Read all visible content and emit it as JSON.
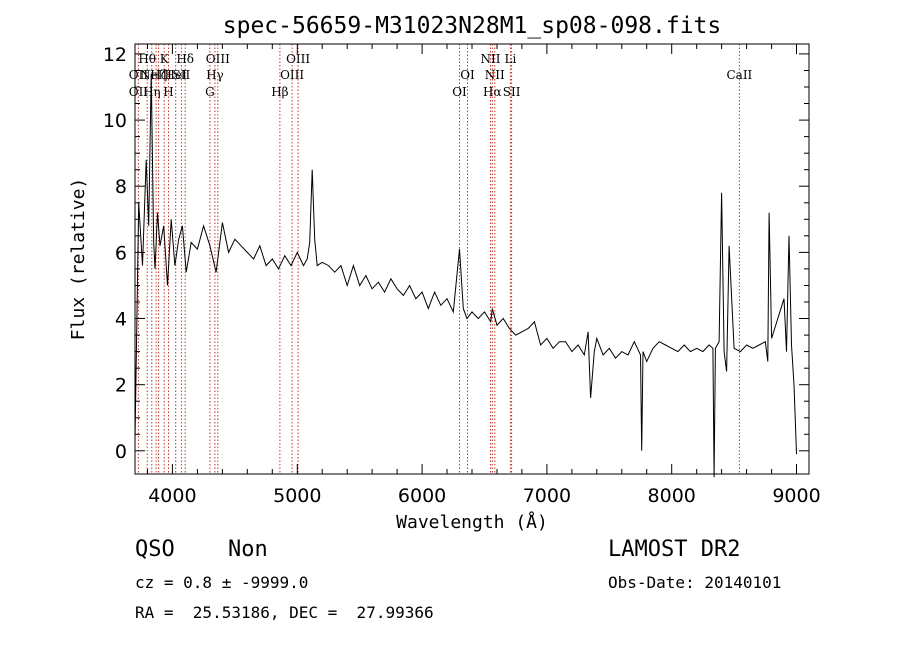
{
  "chart_data": {
    "type": "line",
    "title": "spec-56659-M31023N28M1_sp08-098.fits",
    "xlabel": "Wavelength (Å)",
    "ylabel": "Flux (relative)",
    "xlim": [
      3700,
      9100
    ],
    "ylim": [
      -0.7,
      12.3
    ],
    "x_ticks": [
      4000,
      5000,
      6000,
      7000,
      8000,
      9000
    ],
    "y_ticks": [
      0,
      2,
      4,
      6,
      8,
      10,
      12
    ],
    "grid": false,
    "line_color": "#000000",
    "marker_color": "#c0392b",
    "x": [
      3700,
      3730,
      3760,
      3790,
      3810,
      3830,
      3850,
      3860,
      3880,
      3900,
      3930,
      3960,
      3990,
      4020,
      4050,
      4080,
      4110,
      4150,
      4200,
      4250,
      4300,
      4350,
      4400,
      4450,
      4500,
      4550,
      4600,
      4650,
      4700,
      4750,
      4800,
      4850,
      4900,
      4950,
      5000,
      5050,
      5080,
      5100,
      5120,
      5140,
      5160,
      5200,
      5250,
      5300,
      5350,
      5400,
      5450,
      5500,
      5550,
      5600,
      5650,
      5700,
      5750,
      5800,
      5850,
      5900,
      5950,
      6000,
      6050,
      6100,
      6150,
      6200,
      6250,
      6300,
      6330,
      6360,
      6400,
      6450,
      6500,
      6550,
      6563,
      6600,
      6650,
      6700,
      6750,
      6800,
      6850,
      6900,
      6950,
      7000,
      7050,
      7100,
      7150,
      7200,
      7250,
      7300,
      7330,
      7350,
      7380,
      7400,
      7450,
      7500,
      7550,
      7600,
      7650,
      7700,
      7750,
      7760,
      7770,
      7800,
      7850,
      7900,
      7950,
      8000,
      8050,
      8100,
      8150,
      8200,
      8250,
      8300,
      8330,
      8340,
      8350,
      8380,
      8400,
      8420,
      8440,
      8460,
      8500,
      8550,
      8600,
      8650,
      8700,
      8750,
      8770,
      8780,
      8800,
      8850,
      8900,
      8920,
      8940,
      8960,
      8980,
      9000
    ],
    "y": [
      0.3,
      7.5,
      5.6,
      8.8,
      6.8,
      11.4,
      6.3,
      5.5,
      7.2,
      6.2,
      6.8,
      5.0,
      7.0,
      5.6,
      6.4,
      6.8,
      5.4,
      6.3,
      6.1,
      6.8,
      6.2,
      5.4,
      6.9,
      6.0,
      6.4,
      6.2,
      6.0,
      5.8,
      6.2,
      5.6,
      5.8,
      5.5,
      5.9,
      5.6,
      6.0,
      5.6,
      5.8,
      6.3,
      8.5,
      6.4,
      5.6,
      5.7,
      5.6,
      5.4,
      5.6,
      5.0,
      5.6,
      5.0,
      5.3,
      4.9,
      5.1,
      4.8,
      5.2,
      4.9,
      4.7,
      5.0,
      4.6,
      4.8,
      4.3,
      4.8,
      4.4,
      4.6,
      4.2,
      6.1,
      4.3,
      4.0,
      4.2,
      4.0,
      4.2,
      3.9,
      4.3,
      3.8,
      4.0,
      3.7,
      3.5,
      3.6,
      3.7,
      3.9,
      3.2,
      3.4,
      3.1,
      3.3,
      3.3,
      3.0,
      3.2,
      2.9,
      3.6,
      1.6,
      3.0,
      3.4,
      2.9,
      3.1,
      2.8,
      3.0,
      2.9,
      3.3,
      2.9,
      0.0,
      3.0,
      2.7,
      3.1,
      3.3,
      3.2,
      3.1,
      3.0,
      3.2,
      3.0,
      3.1,
      3.0,
      3.2,
      3.1,
      -0.8,
      3.1,
      3.3,
      7.8,
      3.0,
      2.4,
      6.2,
      3.1,
      3.0,
      3.2,
      3.1,
      3.2,
      3.3,
      2.7,
      7.2,
      3.4,
      4.0,
      4.6,
      3.0,
      6.5,
      3.2,
      2.0,
      -0.1
    ],
    "lines": [
      {
        "wl": 3727,
        "label": "OII"
      },
      {
        "wl": 3798,
        "label": "Hθ"
      },
      {
        "wl": 3835,
        "label": "Hη"
      },
      {
        "wl": 3869,
        "label": "NeIII"
      },
      {
        "wl": 3889,
        "label": "Hζ"
      },
      {
        "wl": 3934,
        "label": "K"
      },
      {
        "wl": 3968,
        "label": "H"
      },
      {
        "wl": 4026,
        "label": "HeI"
      },
      {
        "wl": 4072,
        "label": "SII"
      },
      {
        "wl": 4102,
        "label": "Hδ"
      },
      {
        "wl": 4300,
        "label": "G"
      },
      {
        "wl": 4340,
        "label": "Hγ"
      },
      {
        "wl": 4363,
        "label": "OIII"
      },
      {
        "wl": 4861,
        "label": "Hβ"
      },
      {
        "wl": 4959,
        "label": "OIII"
      },
      {
        "wl": 5007,
        "label": "OIII"
      },
      {
        "wl": 6300,
        "label": "OI"
      },
      {
        "wl": 6364,
        "label": "OI"
      },
      {
        "wl": 6548,
        "label": "NII"
      },
      {
        "wl": 6563,
        "label": "Hα"
      },
      {
        "wl": 6583,
        "label": "NII"
      },
      {
        "wl": 6708,
        "label": "Li"
      },
      {
        "wl": 6717,
        "label": "SII"
      },
      {
        "wl": 8542,
        "label": "CaII"
      }
    ],
    "labels_row1": [
      {
        "wl": 3798,
        "text": "Hθ"
      },
      {
        "wl": 3934,
        "text": "K"
      },
      {
        "wl": 4102,
        "text": "Hδ"
      },
      {
        "wl": 4363,
        "text": "OIII"
      },
      {
        "wl": 5007,
        "text": "OIII"
      },
      {
        "wl": 6548,
        "text": "NII"
      },
      {
        "wl": 6708,
        "text": "Li"
      }
    ],
    "labels_row2": [
      {
        "wl": 3727,
        "text": "OII"
      },
      {
        "wl": 3889,
        "text": "Hζ"
      },
      {
        "wl": 3869,
        "text": "NeIII"
      },
      {
        "wl": 4026,
        "text": "HeI"
      },
      {
        "wl": 4072,
        "text": "SII"
      },
      {
        "wl": 4340,
        "text": "Hγ"
      },
      {
        "wl": 4959,
        "text": "OIII"
      },
      {
        "wl": 6364,
        "text": "OI"
      },
      {
        "wl": 6583,
        "text": "NII"
      },
      {
        "wl": 8542,
        "text": "CaII"
      }
    ],
    "labels_row3": [
      {
        "wl": 3727,
        "text": "OII"
      },
      {
        "wl": 3835,
        "text": "Hη"
      },
      {
        "wl": 3968,
        "text": "H"
      },
      {
        "wl": 4300,
        "text": "G"
      },
      {
        "wl": 4861,
        "text": "Hβ"
      },
      {
        "wl": 6300,
        "text": "OI"
      },
      {
        "wl": 6563,
        "text": "Hα"
      },
      {
        "wl": 6717,
        "text": "SII"
      }
    ]
  },
  "info": {
    "class": "QSO",
    "subclass": "Non",
    "survey": "LAMOST DR2",
    "cz": "cz = 0.8 ± -9999.0",
    "obs_date": "Obs-Date: 20140101",
    "coords": "RA =  25.53186, DEC =  27.99366"
  }
}
